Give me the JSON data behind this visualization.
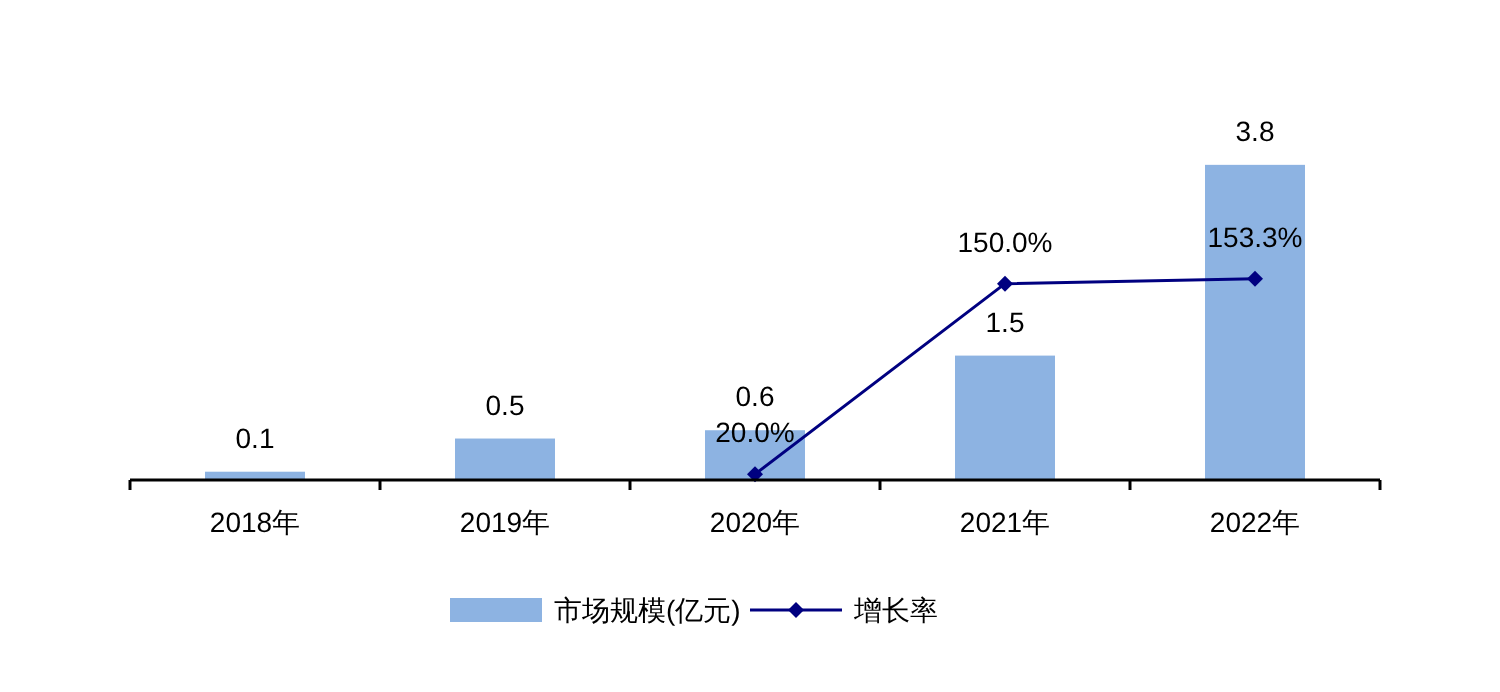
{
  "chart_data": {
    "type": "bar",
    "categories": [
      "2018年",
      "2019年",
      "2020年",
      "2021年",
      "2022年"
    ],
    "tick_labels": "x",
    "legend": "bottom",
    "series": [
      {
        "name": "市场规模(亿元)",
        "color": "#8db3e2",
        "values": [
          0.1,
          0.5,
          0.6,
          1.5,
          3.8
        ],
        "value_labels": [
          "0.1",
          "0.5",
          "0.6",
          "1.5",
          "3.8"
        ]
      },
      {
        "name": "增长率",
        "type": "line",
        "axis": "y2",
        "marker": "diamond",
        "color": "#000080",
        "values": [
          null,
          null,
          20.0,
          150.0,
          153.3
        ],
        "value_labels": [
          null,
          null,
          "20.0%",
          "150.0%",
          "153.3%"
        ]
      }
    ]
  }
}
